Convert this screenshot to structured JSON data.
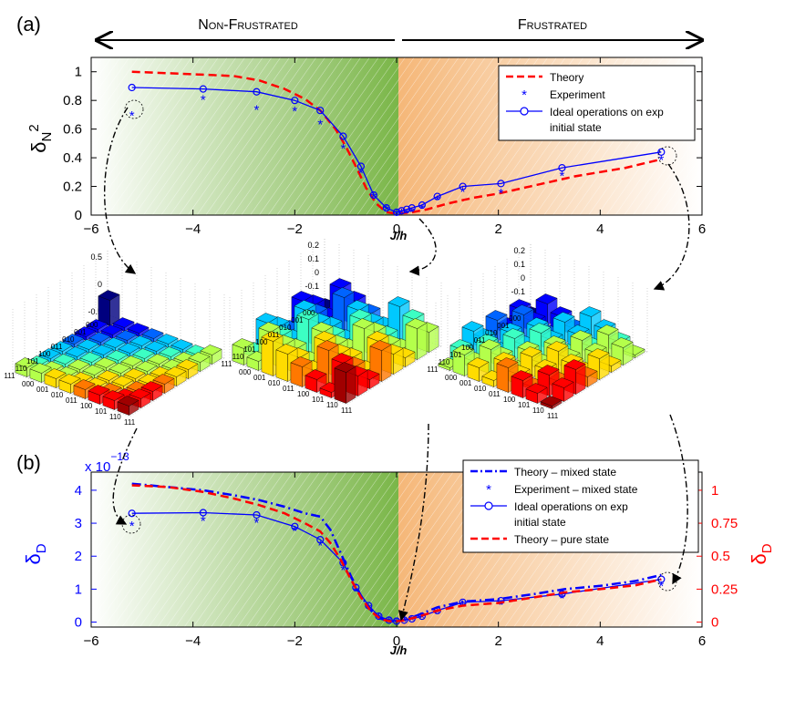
{
  "panels": {
    "a_label": "(a)",
    "b_label": "(b)",
    "left_region": "Non-Frustrated",
    "right_region": "Frustrated"
  },
  "colors": {
    "theory": "#ff0000",
    "experiment": "#0000ff",
    "ideal": "#0000ff",
    "green_region": "#7ab648",
    "orange_region": "#f5b778",
    "right_axis": "#ff0000",
    "left_axis_b": "#0000ff"
  },
  "chart_data": [
    {
      "type": "line",
      "panel": "a",
      "xlabel": "J/h",
      "ylabel": "δN2",
      "xlim": [
        -6,
        6
      ],
      "ylim": [
        0,
        1
      ],
      "xticks": [
        -6,
        -4,
        -2,
        0,
        2,
        4,
        6
      ],
      "yticks": [
        0,
        0.2,
        0.4,
        0.6,
        0.8,
        1
      ],
      "legend_position": "top-right",
      "series": [
        {
          "name": "Theory",
          "style": "dashed",
          "color": "#ff0000",
          "x": [
            -5.2,
            -4.5,
            -3.8,
            -3.2,
            -2.7,
            -2.2,
            -1.8,
            -1.5,
            -1.2,
            -1.0,
            -0.8,
            -0.6,
            -0.4,
            -0.2,
            0.0,
            0.3,
            0.6,
            1.0,
            1.5,
            2.0,
            2.5,
            3.0,
            3.5,
            4.0,
            4.5,
            5.2
          ],
          "y": [
            1.0,
            0.99,
            0.98,
            0.97,
            0.94,
            0.88,
            0.81,
            0.73,
            0.6,
            0.48,
            0.34,
            0.19,
            0.08,
            0.02,
            0.01,
            0.02,
            0.04,
            0.08,
            0.12,
            0.15,
            0.19,
            0.23,
            0.27,
            0.3,
            0.33,
            0.39
          ]
        },
        {
          "name": "Experiment",
          "style": "marker-star",
          "color": "#0000ff",
          "x": [
            -5.2,
            -3.8,
            -2.75,
            -2.0,
            -1.5,
            -1.05,
            -0.7,
            -0.45,
            -0.2,
            0.0,
            0.1,
            0.2,
            0.3,
            0.5,
            0.8,
            1.3,
            2.05,
            3.25,
            5.2
          ],
          "y": [
            0.7,
            0.81,
            0.74,
            0.73,
            0.64,
            0.47,
            0.3,
            0.13,
            0.04,
            0.01,
            0.02,
            0.02,
            0.03,
            0.05,
            0.11,
            0.17,
            0.16,
            0.28,
            0.39
          ]
        },
        {
          "name": "Ideal operations on exp initial state",
          "style": "line-circle",
          "color": "#0000ff",
          "x": [
            -5.2,
            -3.8,
            -2.75,
            -2.0,
            -1.5,
            -1.05,
            -0.7,
            -0.45,
            -0.2,
            0.0,
            0.1,
            0.2,
            0.3,
            0.5,
            0.8,
            1.3,
            2.05,
            3.25,
            5.2
          ],
          "y": [
            0.89,
            0.88,
            0.86,
            0.8,
            0.73,
            0.55,
            0.34,
            0.14,
            0.05,
            0.02,
            0.03,
            0.04,
            0.05,
            0.07,
            0.13,
            0.2,
            0.22,
            0.33,
            0.44
          ]
        }
      ]
    },
    {
      "type": "line",
      "panel": "b",
      "xlabel": "J/h",
      "ylabel_left": "δD",
      "ylabel_right": "δD",
      "yscale_left": "x 10−13",
      "yscale_exponent": "−13",
      "xlim": [
        -6,
        6
      ],
      "ylim_left": [
        0,
        4.2
      ],
      "ylim_right": [
        0,
        1.05
      ],
      "xticks": [
        -6,
        -4,
        -2,
        0,
        2,
        4,
        6
      ],
      "yticks_left": [
        0,
        1,
        2,
        3,
        4
      ],
      "yticks_right": [
        "0",
        "0.25",
        "0.5",
        "0.75",
        "1"
      ],
      "legend_position": "top-right",
      "series": [
        {
          "name": "Theory – mixed state",
          "style": "dashdot",
          "color": "#0000ff",
          "x": [
            -5.2,
            -4.5,
            -3.8,
            -3.2,
            -2.7,
            -2.2,
            -1.8,
            -1.5,
            -1.3,
            -1.1,
            -0.9,
            -0.7,
            -0.5,
            -0.3,
            -0.1,
            0.1,
            0.4,
            0.8,
            1.3,
            2.0,
            2.7,
            3.3,
            4.0,
            4.7,
            5.2
          ],
          "y": [
            4.2,
            4.1,
            4.0,
            3.85,
            3.7,
            3.5,
            3.3,
            3.2,
            2.8,
            2.1,
            1.4,
            0.8,
            0.35,
            0.1,
            0.02,
            0.05,
            0.2,
            0.45,
            0.62,
            0.7,
            0.85,
            1.0,
            1.1,
            1.25,
            1.43
          ]
        },
        {
          "name": "Experiment – mixed state",
          "style": "marker-star",
          "color": "#0000ff",
          "x": [
            -5.2,
            -3.8,
            -2.75,
            -2.0,
            -1.5,
            -1.05,
            -0.8,
            -0.55,
            -0.35,
            -0.15,
            0.0,
            0.15,
            0.3,
            0.5,
            0.8,
            1.3,
            2.05,
            3.25,
            5.2
          ],
          "y": [
            2.95,
            3.1,
            3.05,
            2.8,
            2.35,
            1.6,
            0.95,
            0.45,
            0.15,
            0.05,
            0.02,
            0.05,
            0.08,
            0.15,
            0.3,
            0.5,
            0.55,
            0.75,
            1.12
          ]
        },
        {
          "name": "Ideal operations on exp initial state",
          "style": "line-circle",
          "color": "#0000ff",
          "x": [
            -5.2,
            -3.8,
            -2.75,
            -2.0,
            -1.5,
            -1.05,
            -0.8,
            -0.55,
            -0.35,
            -0.15,
            0.0,
            0.15,
            0.3,
            0.5,
            0.8,
            1.3,
            2.05,
            3.25,
            5.2
          ],
          "y": [
            3.3,
            3.32,
            3.25,
            2.9,
            2.5,
            1.8,
            1.05,
            0.5,
            0.18,
            0.06,
            0.03,
            0.06,
            0.1,
            0.18,
            0.35,
            0.6,
            0.65,
            0.85,
            1.3
          ]
        },
        {
          "name": "Theory – pure state",
          "style": "dashed",
          "color": "#ff0000",
          "x": [
            -5.2,
            -4.5,
            -3.8,
            -3.2,
            -2.7,
            -2.2,
            -1.8,
            -1.5,
            -1.3,
            -1.1,
            -0.9,
            -0.7,
            -0.5,
            -0.3,
            -0.1,
            0.1,
            0.4,
            0.8,
            1.3,
            2.0,
            2.7,
            3.3,
            4.0,
            4.7,
            5.2
          ],
          "y": [
            4.15,
            4.1,
            3.95,
            3.75,
            3.55,
            3.3,
            3.0,
            2.75,
            2.4,
            1.9,
            1.3,
            0.75,
            0.32,
            0.08,
            0.02,
            0.04,
            0.15,
            0.35,
            0.5,
            0.58,
            0.75,
            0.9,
            1.0,
            1.12,
            1.3
          ]
        }
      ]
    }
  ],
  "insets": [
    {
      "name": "density-matrix-left",
      "zticks": [
        "0.5",
        "0",
        "-0.5"
      ]
    },
    {
      "name": "density-matrix-middle",
      "zticks": [
        "0.2",
        "0.1",
        "0",
        "-0.1",
        "-0.2"
      ]
    },
    {
      "name": "density-matrix-right",
      "zticks": [
        "0.2",
        "0.1",
        "0",
        "-0.1",
        "-0.2"
      ]
    }
  ],
  "basis_labels": [
    "000",
    "001",
    "010",
    "011",
    "100",
    "101",
    "110",
    "111"
  ]
}
